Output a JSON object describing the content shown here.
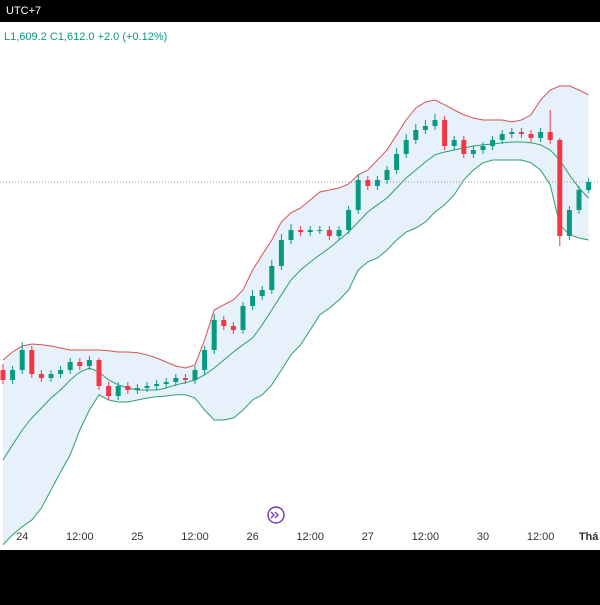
{
  "chart_data": {
    "type": "candlestick",
    "title": "UTC+7",
    "subtitle": "L1,609.2  C1,612.0  +2.0 (+0.12%)",
    "categories": [
      null,
      null,
      "24",
      null,
      null,
      null,
      null,
      null,
      "12:00",
      null,
      null,
      null,
      null,
      null,
      "25",
      null,
      null,
      null,
      null,
      null,
      "12:00",
      null,
      null,
      null,
      null,
      null,
      "26",
      null,
      null,
      null,
      null,
      null,
      "12:00",
      null,
      null,
      null,
      null,
      null,
      "27",
      null,
      null,
      null,
      null,
      null,
      "12:00",
      null,
      null,
      null,
      null,
      null,
      "30",
      null,
      null,
      null,
      null,
      null,
      "12:00",
      null,
      null,
      null,
      null,
      "Thá"
    ],
    "open": [
      1565,
      1562.5,
      1565,
      1570,
      1564,
      1563,
      1564,
      1565,
      1567,
      1566,
      1567.5,
      1561,
      1558.5,
      1561,
      1560,
      1560.5,
      1561,
      1561.5,
      1562,
      1563,
      1562.5,
      1565,
      1570,
      1577.5,
      1576,
      1575,
      1581,
      1583.5,
      1585,
      1591,
      1597.5,
      1600,
      1599.5,
      1600,
      1600,
      1598.5,
      1600,
      1605,
      1612.5,
      1611,
      1612.5,
      1615,
      1619,
      1622.5,
      1625,
      1626,
      1627.5,
      1621,
      1622.5,
      1619,
      1620,
      1621,
      1622.5,
      1624,
      1624.5,
      1624,
      1623,
      1624.5,
      1622.5,
      1598.5,
      1605,
      1610
    ],
    "high": [
      1566.5,
      1566,
      1572,
      1571,
      1565,
      1565,
      1566,
      1568,
      1568,
      1568.5,
      1568,
      1562,
      1562,
      1562,
      1561.5,
      1562,
      1562.5,
      1563,
      1564,
      1564,
      1566,
      1571,
      1579,
      1578.5,
      1577,
      1582,
      1585,
      1586,
      1592.5,
      1599,
      1601.5,
      1601,
      1601,
      1601,
      1601,
      1601,
      1606,
      1614,
      1613.5,
      1613.5,
      1616,
      1620.5,
      1624,
      1626.5,
      1627.5,
      1629,
      1628.5,
      1623.5,
      1623.5,
      1621,
      1622,
      1623.5,
      1625,
      1625.5,
      1625.5,
      1625,
      1625.5,
      1630,
      1623,
      1606,
      1611,
      1613
    ],
    "low": [
      1561.5,
      1561.5,
      1564,
      1563,
      1562,
      1562,
      1563,
      1564,
      1565,
      1565,
      1560,
      1557.5,
      1557.5,
      1559,
      1559,
      1559.5,
      1560,
      1560.5,
      1561,
      1561.5,
      1561.5,
      1564,
      1569,
      1575,
      1574,
      1574,
      1580,
      1582.5,
      1584,
      1590,
      1596.5,
      1598.5,
      1598.5,
      1599,
      1597.5,
      1597.5,
      1599,
      1604,
      1610,
      1610,
      1611.5,
      1614,
      1618,
      1621.5,
      1624,
      1625,
      1620,
      1620,
      1618,
      1618,
      1619,
      1620,
      1621.5,
      1623,
      1623,
      1622,
      1622,
      1621.5,
      1596,
      1597.5,
      1604,
      1609.2
    ],
    "close": [
      1562.5,
      1565,
      1570,
      1564,
      1563,
      1564,
      1565,
      1567,
      1566,
      1567.5,
      1561,
      1558.5,
      1561,
      1560,
      1560.5,
      1561,
      1561.5,
      1562,
      1563,
      1562.5,
      1565,
      1570,
      1577.5,
      1576,
      1575,
      1581,
      1583.5,
      1585,
      1591,
      1597.5,
      1600,
      1599.5,
      1600,
      1600,
      1598.5,
      1600,
      1605,
      1612.5,
      1611,
      1612.5,
      1615,
      1619,
      1622.5,
      1625,
      1626,
      1627.5,
      1621,
      1622.5,
      1619,
      1620,
      1621,
      1622.5,
      1624,
      1624.5,
      1624,
      1623,
      1624.5,
      1622.5,
      1598.5,
      1605,
      1610,
      1612
    ],
    "upper_band": [
      1567.5,
      1569.5,
      1571,
      1571.5,
      1571.3,
      1571,
      1570.5,
      1570,
      1570,
      1570,
      1570,
      1569.8,
      1569.5,
      1569.5,
      1569.3,
      1568.8,
      1568,
      1567,
      1566,
      1565.5,
      1566.3,
      1572.5,
      1580,
      1581.3,
      1582.5,
      1585,
      1590,
      1593.8,
      1597.5,
      1602,
      1604.3,
      1605.5,
      1607.5,
      1609.5,
      1610,
      1610.5,
      1611.5,
      1613.8,
      1615,
      1617.5,
      1620,
      1623.8,
      1627.5,
      1630.5,
      1632,
      1632.5,
      1631.3,
      1630,
      1628.8,
      1628,
      1627.5,
      1627.5,
      1627.5,
      1627,
      1627.5,
      1628.8,
      1632.5,
      1635,
      1636,
      1636,
      1635,
      1633.8
    ],
    "middle_band": [
      1542.5,
      1546.3,
      1550,
      1553,
      1555.5,
      1558,
      1560,
      1562.5,
      1564.5,
      1565.5,
      1564.5,
      1562.5,
      1561.3,
      1560.5,
      1560,
      1560,
      1560,
      1560.5,
      1561.3,
      1561.8,
      1562.5,
      1563.8,
      1565.5,
      1567.5,
      1569.5,
      1571.3,
      1573,
      1576.3,
      1580,
      1583.8,
      1587.5,
      1590,
      1592,
      1593.8,
      1595.5,
      1597.5,
      1599.5,
      1602,
      1604.5,
      1606.3,
      1608,
      1610.5,
      1613,
      1615,
      1617,
      1618.8,
      1619.5,
      1620,
      1620.5,
      1621,
      1621.3,
      1621.5,
      1621.8,
      1622,
      1622,
      1621.8,
      1621.3,
      1620,
      1617.5,
      1613.8,
      1610.5,
      1608
    ],
    "lower_band": [
      1521.3,
      1523.8,
      1525.8,
      1527.5,
      1530.5,
      1535,
      1539.5,
      1543.8,
      1550,
      1555,
      1558.8,
      1557.5,
      1557,
      1557,
      1557.5,
      1558,
      1558.3,
      1558.5,
      1558.8,
      1558.8,
      1558,
      1555,
      1552.5,
      1552.5,
      1553,
      1555,
      1557.5,
      1558.8,
      1561.3,
      1565,
      1568.8,
      1571.3,
      1575,
      1578.8,
      1580.5,
      1582.5,
      1585,
      1590,
      1592,
      1593,
      1595,
      1597.5,
      1599.5,
      1600.5,
      1602,
      1604.5,
      1606.3,
      1608.8,
      1612.5,
      1615,
      1616.8,
      1617.5,
      1617.5,
      1617.5,
      1617.5,
      1616.8,
      1615,
      1611.3,
      1601.3,
      1598.8,
      1598,
      1597.5
    ],
    "up_color": "#089981",
    "down_color": "#f23645",
    "upper_color": "#d9534f",
    "middle_color": "#2e9e6e",
    "lower_color": "#2e9e6e",
    "band_fill": "#e6f1fb",
    "ylim": [
      1520,
      1652
    ]
  }
}
